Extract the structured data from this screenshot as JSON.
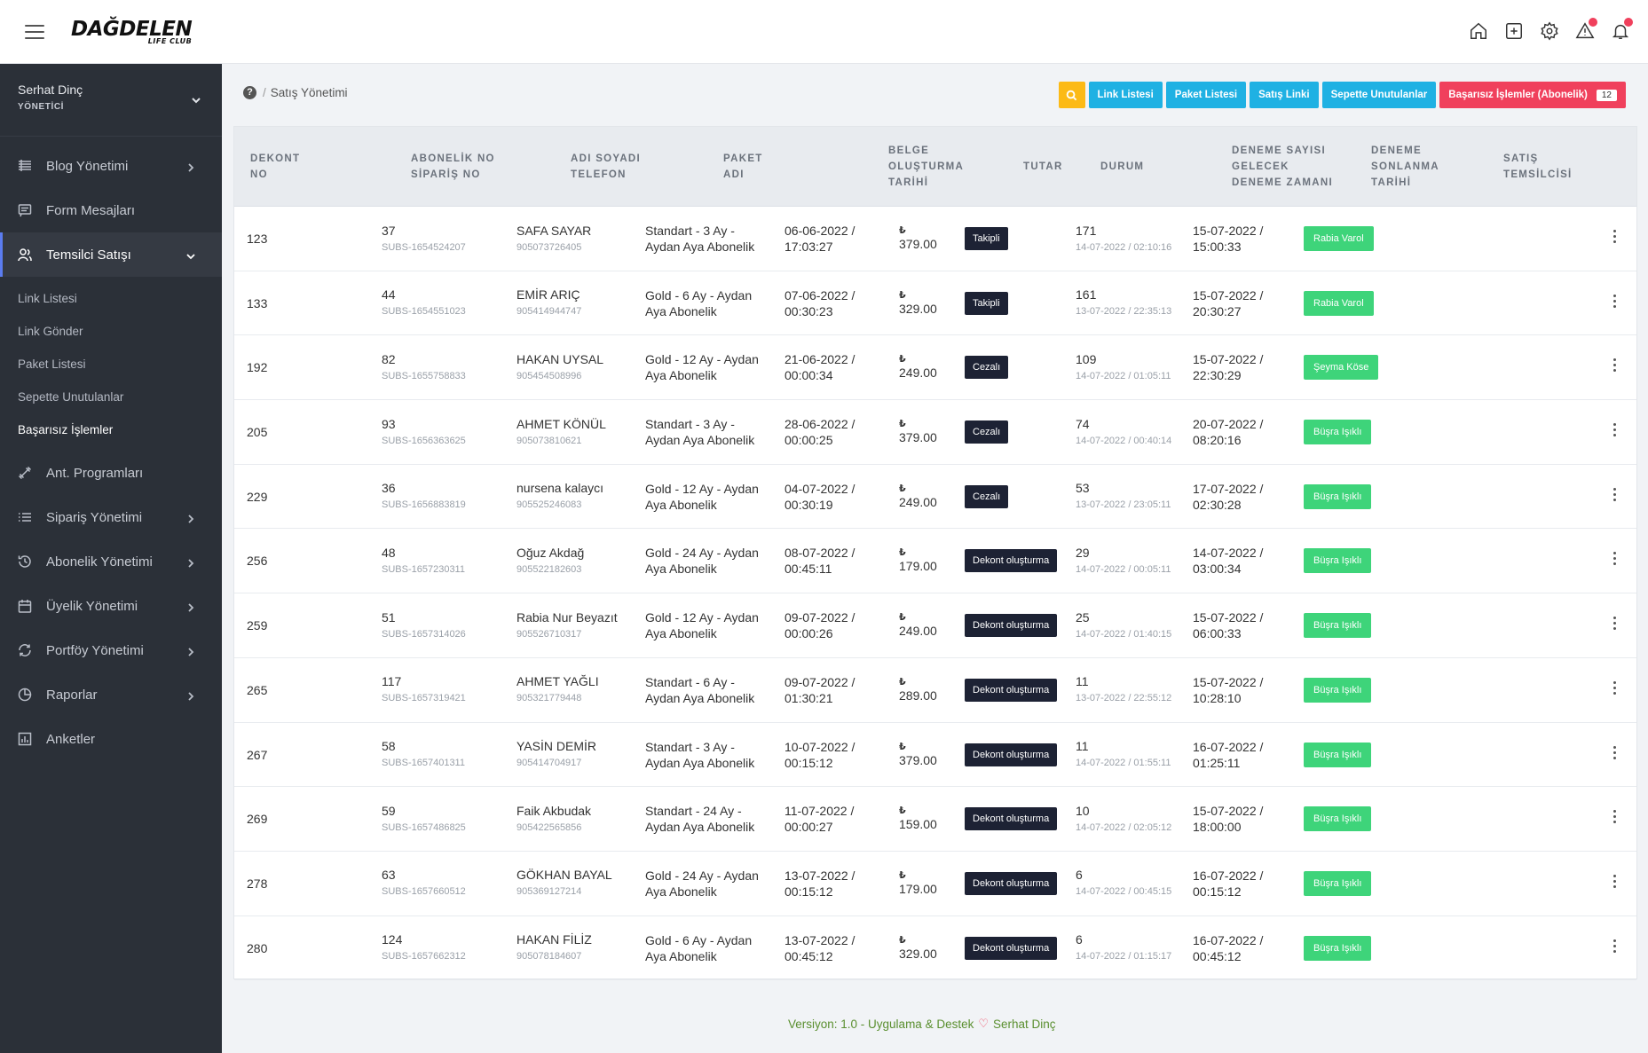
{
  "header": {
    "logo_main": "DAĞDELEN",
    "logo_sub": "LIFE CLUB",
    "icons": [
      "home-icon",
      "plus-square-icon",
      "gear-icon",
      "warning-icon",
      "bell-icon"
    ]
  },
  "user": {
    "name": "Serhat Dinç",
    "role": "YÖNETİCİ"
  },
  "sidebar": {
    "items": [
      {
        "label": "Blog Yönetimi",
        "icon": "list-icon",
        "has_chevron": true
      },
      {
        "label": "Form Mesajları",
        "icon": "message-icon",
        "has_chevron": false
      },
      {
        "label": "Temsilci Satışı",
        "icon": "users-icon",
        "has_chevron": true,
        "active": true
      }
    ],
    "sub_items": [
      "Link Listesi",
      "Link Gönder",
      "Paket Listesi",
      "Sepette Unutulanlar",
      "Başarısız İşlemler"
    ],
    "items2": [
      {
        "label": "Ant. Programları",
        "icon": "dumbbell-icon",
        "has_chevron": false
      },
      {
        "label": "Sipariş Yönetimi",
        "icon": "list-ordered-icon",
        "has_chevron": true
      },
      {
        "label": "Abonelik Yönetimi",
        "icon": "history-icon",
        "has_chevron": true
      },
      {
        "label": "Üyelik Yönetimi",
        "icon": "calendar-icon",
        "has_chevron": true
      },
      {
        "label": "Portföy Yönetimi",
        "icon": "refresh-icon",
        "has_chevron": true
      },
      {
        "label": "Raporlar",
        "icon": "pie-chart-icon",
        "has_chevron": true
      },
      {
        "label": "Anketler",
        "icon": "bar-chart-icon",
        "has_chevron": false
      }
    ]
  },
  "breadcrumb": {
    "page": "Satış Yönetimi"
  },
  "actions": {
    "link_list": "Link Listesi",
    "package_list": "Paket Listesi",
    "sales_link": "Satış Linki",
    "cart_forgotten": "Sepette Unutulanlar",
    "failed": "Başarısız İşlemler (Abonelik)",
    "failed_count": "12"
  },
  "table": {
    "headers": {
      "c1a": "DEKONT",
      "c1b": "NO",
      "c2a": "ABONELİK NO",
      "c2b": "SİPARİŞ NO",
      "c3a": "ADI SOYADI",
      "c3b": "TELEFON",
      "c4a": "PAKET",
      "c4b": "ADI",
      "c5a": "BELGE",
      "c5b": "OLUŞTURMA",
      "c5c": "TARİHİ",
      "c6a": "TUTAR",
      "c7a": "DURUM",
      "c8a": "DENEME SAYISI",
      "c8b": "GELECEK",
      "c8c": "DENEME ZAMANI",
      "c9a": "DENEME",
      "c9b": "SONLANMA",
      "c9c": "TARİHİ",
      "c10a": "SATIŞ",
      "c10b": "TEMSİLCİSİ"
    },
    "currency": "₺",
    "rows": [
      {
        "dekont": "123",
        "sub": "37",
        "order": "SUBS-1654524207",
        "name": "SAFA SAYAR",
        "phone": "905073726405",
        "pkg1": "Standart - 3 Ay -",
        "pkg2": "Aydan Aya Abonelik",
        "date1": "06-06-2022 /",
        "date2": "17:03:27",
        "amount": "379.00",
        "status": "Takipli",
        "tries": "171",
        "next": "14-07-2022 / 02:10:16",
        "end1": "15-07-2022 /",
        "end2": "15:00:33",
        "rep": "Rabia Varol"
      },
      {
        "dekont": "133",
        "sub": "44",
        "order": "SUBS-1654551023",
        "name": "EMİR ARIÇ",
        "phone": "905414944747",
        "pkg1": "Gold - 6 Ay - Aydan",
        "pkg2": "Aya Abonelik",
        "date1": "07-06-2022 /",
        "date2": "00:30:23",
        "amount": "329.00",
        "status": "Takipli",
        "tries": "161",
        "next": "13-07-2022 / 22:35:13",
        "end1": "15-07-2022 /",
        "end2": "20:30:27",
        "rep": "Rabia Varol"
      },
      {
        "dekont": "192",
        "sub": "82",
        "order": "SUBS-1655758833",
        "name": "HAKAN UYSAL",
        "phone": "905454508996",
        "pkg1": "Gold - 12 Ay - Aydan",
        "pkg2": "Aya Abonelik",
        "date1": "21-06-2022 /",
        "date2": "00:00:34",
        "amount": "249.00",
        "status": "Cezalı",
        "tries": "109",
        "next": "14-07-2022 / 01:05:11",
        "end1": "15-07-2022 /",
        "end2": "22:30:29",
        "rep": "Şeyma Köse"
      },
      {
        "dekont": "205",
        "sub": "93",
        "order": "SUBS-1656363625",
        "name": "AHMET KÖNÜL",
        "phone": "905073810621",
        "pkg1": "Standart - 3 Ay -",
        "pkg2": "Aydan Aya Abonelik",
        "date1": "28-06-2022 /",
        "date2": "00:00:25",
        "amount": "379.00",
        "status": "Cezalı",
        "tries": "74",
        "next": "14-07-2022 / 00:40:14",
        "end1": "20-07-2022 /",
        "end2": "08:20:16",
        "rep": "Büşra Işıklı"
      },
      {
        "dekont": "229",
        "sub": "36",
        "order": "SUBS-1656883819",
        "name": "nursena kalaycı",
        "phone": "905525246083",
        "pkg1": "Gold - 12 Ay - Aydan",
        "pkg2": "Aya Abonelik",
        "date1": "04-07-2022 /",
        "date2": "00:30:19",
        "amount": "249.00",
        "status": "Cezalı",
        "tries": "53",
        "next": "13-07-2022 / 23:05:11",
        "end1": "17-07-2022 /",
        "end2": "02:30:28",
        "rep": "Büşra Işıklı"
      },
      {
        "dekont": "256",
        "sub": "48",
        "order": "SUBS-1657230311",
        "name": "Oğuz Akdağ",
        "phone": "905522182603",
        "pkg1": "Gold - 24 Ay - Aydan",
        "pkg2": "Aya Abonelik",
        "date1": "08-07-2022 /",
        "date2": "00:45:11",
        "amount": "179.00",
        "status": "Dekont oluşturma",
        "tries": "29",
        "next": "14-07-2022 / 00:05:11",
        "end1": "14-07-2022 /",
        "end2": "03:00:34",
        "rep": "Büşra Işıklı"
      },
      {
        "dekont": "259",
        "sub": "51",
        "order": "SUBS-1657314026",
        "name": "Rabia Nur Beyazıt",
        "phone": "905526710317",
        "pkg1": "Gold - 12 Ay - Aydan",
        "pkg2": "Aya Abonelik",
        "date1": "09-07-2022 /",
        "date2": "00:00:26",
        "amount": "249.00",
        "status": "Dekont oluşturma",
        "tries": "25",
        "next": "14-07-2022 / 01:40:15",
        "end1": "15-07-2022 /",
        "end2": "06:00:33",
        "rep": "Büşra Işıklı"
      },
      {
        "dekont": "265",
        "sub": "117",
        "order": "SUBS-1657319421",
        "name": "AHMET YAĞLI",
        "phone": "905321779448",
        "pkg1": "Standart - 6 Ay -",
        "pkg2": "Aydan Aya Abonelik",
        "date1": "09-07-2022 /",
        "date2": "01:30:21",
        "amount": "289.00",
        "status": "Dekont oluşturma",
        "tries": "11",
        "next": "13-07-2022 / 22:55:12",
        "end1": "15-07-2022 /",
        "end2": "10:28:10",
        "rep": "Büşra Işıklı"
      },
      {
        "dekont": "267",
        "sub": "58",
        "order": "SUBS-1657401311",
        "name": "YASİN DEMİR",
        "phone": "905414704917",
        "pkg1": "Standart - 3 Ay -",
        "pkg2": "Aydan Aya Abonelik",
        "date1": "10-07-2022 /",
        "date2": "00:15:12",
        "amount": "379.00",
        "status": "Dekont oluşturma",
        "tries": "11",
        "next": "14-07-2022 / 01:55:11",
        "end1": "16-07-2022 /",
        "end2": "01:25:11",
        "rep": "Büşra Işıklı"
      },
      {
        "dekont": "269",
        "sub": "59",
        "order": "SUBS-1657486825",
        "name": "Faik Akbudak",
        "phone": "905422565856",
        "pkg1": "Standart - 24 Ay -",
        "pkg2": "Aydan Aya Abonelik",
        "date1": "11-07-2022 /",
        "date2": "00:00:27",
        "amount": "159.00",
        "status": "Dekont oluşturma",
        "tries": "10",
        "next": "14-07-2022 / 02:05:12",
        "end1": "15-07-2022 /",
        "end2": "18:00:00",
        "rep": "Büşra Işıklı"
      },
      {
        "dekont": "278",
        "sub": "63",
        "order": "SUBS-1657660512",
        "name": "GÖKHAN BAYAL",
        "phone": "905369127214",
        "pkg1": "Gold - 24 Ay - Aydan",
        "pkg2": "Aya Abonelik",
        "date1": "13-07-2022 /",
        "date2": "00:15:12",
        "amount": "179.00",
        "status": "Dekont oluşturma",
        "tries": "6",
        "next": "14-07-2022 / 00:45:15",
        "end1": "16-07-2022 /",
        "end2": "00:15:12",
        "rep": "Büşra Işıklı"
      },
      {
        "dekont": "280",
        "sub": "124",
        "order": "SUBS-1657662312",
        "name": "HAKAN FİLİZ",
        "phone": "905078184607",
        "pkg1": "Gold - 6 Ay - Aydan",
        "pkg2": "Aya Abonelik",
        "date1": "13-07-2022 /",
        "date2": "00:45:12",
        "amount": "329.00",
        "status": "Dekont oluşturma",
        "tries": "6",
        "next": "14-07-2022 / 01:15:17",
        "end1": "16-07-2022 /",
        "end2": "00:45:12",
        "rep": "Büşra Işıklı"
      }
    ]
  },
  "footer": {
    "version": "Versiyon: 1.0 - Uygulama & Destek",
    "author": "Serhat Dinç"
  },
  "colors": {
    "sidebar": "#2b3038",
    "cyan": "#1fb1e3",
    "yellow": "#fcba16",
    "red": "#f0405c",
    "green": "#3ed47a",
    "status_dark": "#1d2234"
  }
}
